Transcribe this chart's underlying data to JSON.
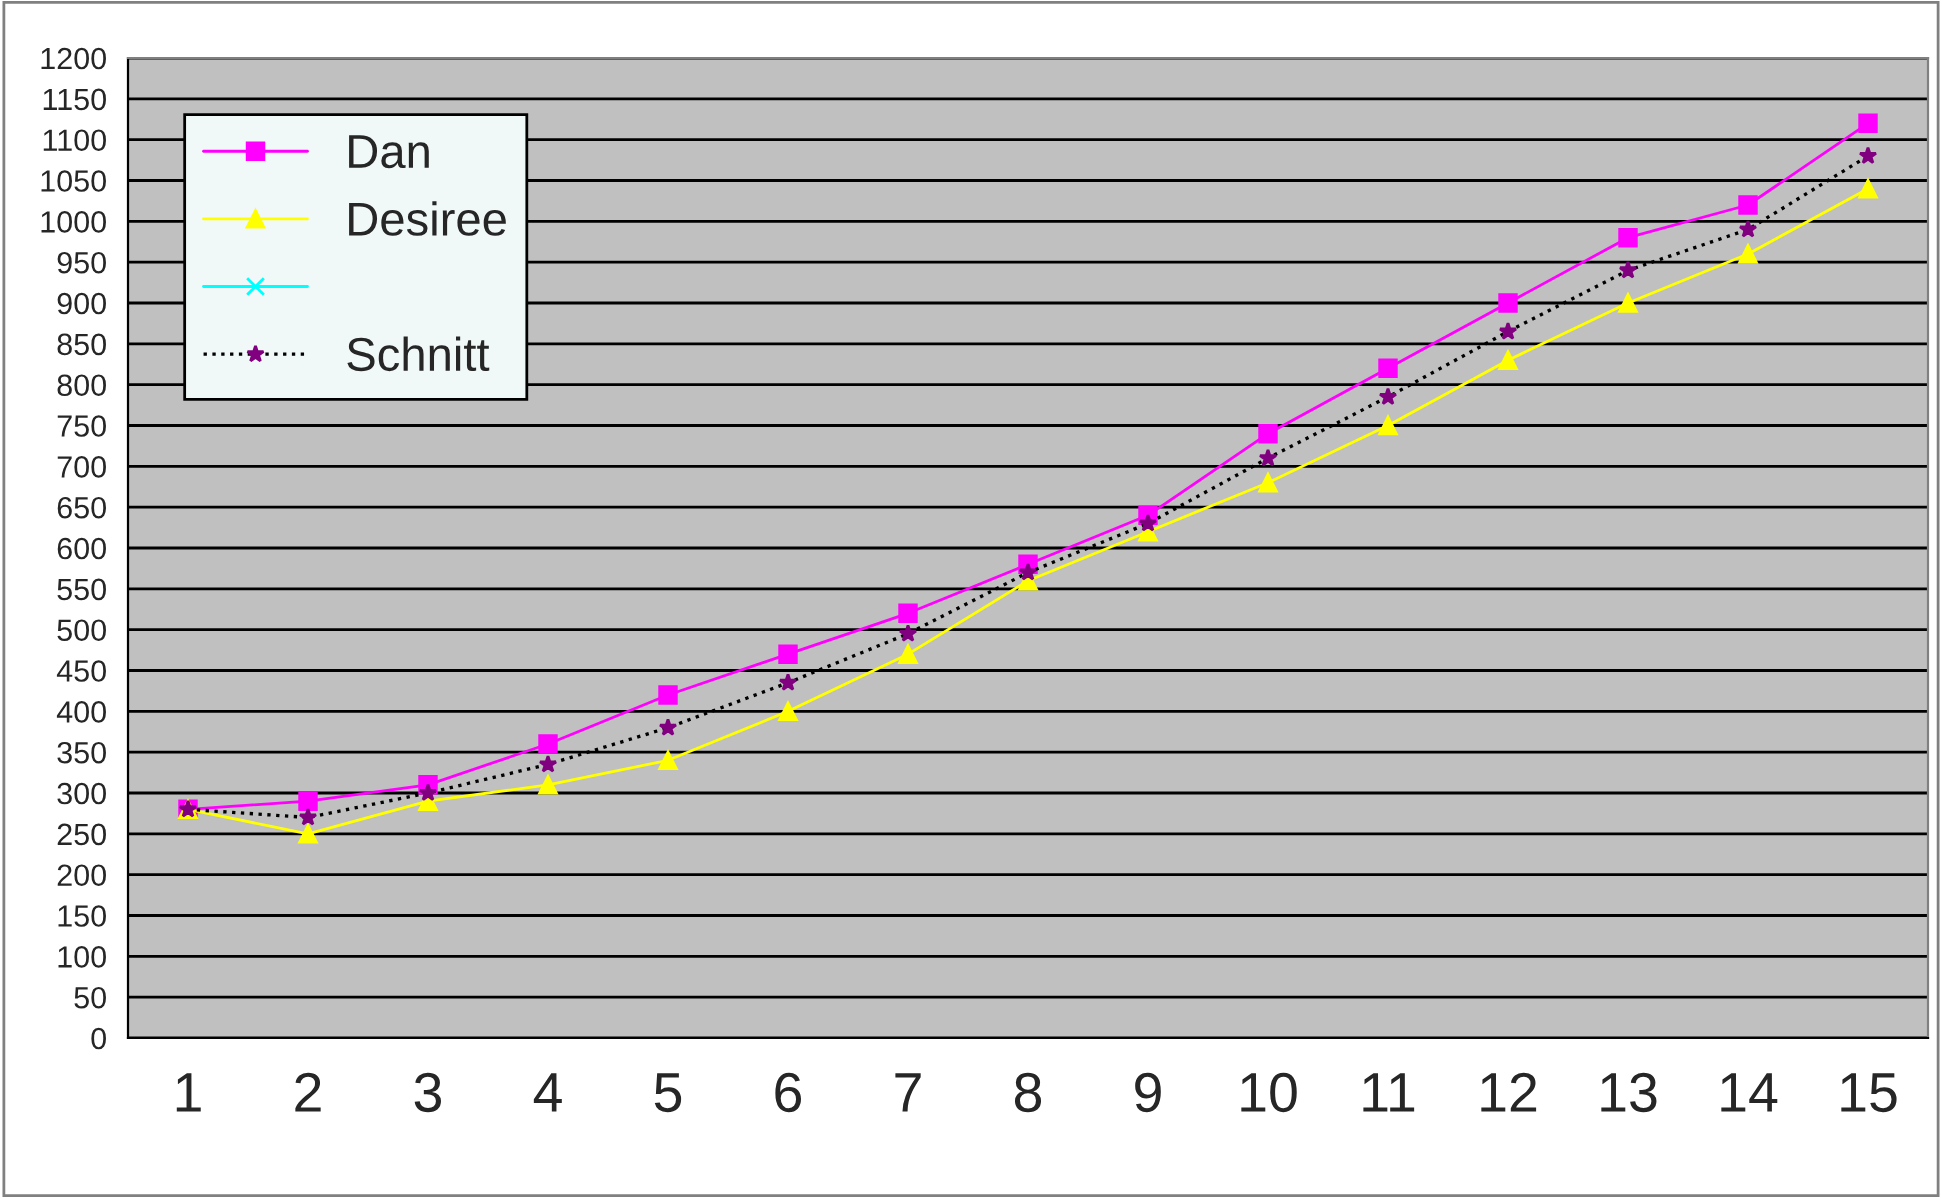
{
  "chart_data": {
    "type": "line",
    "categories": [
      "1",
      "2",
      "3",
      "4",
      "5",
      "6",
      "7",
      "8",
      "9",
      "10",
      "11",
      "12",
      "13",
      "14",
      "15"
    ],
    "series": [
      {
        "name": "Dan",
        "color": "#ff00ff",
        "marker": "square",
        "line_style": "solid",
        "values": [
          280,
          290,
          310,
          360,
          420,
          470,
          520,
          580,
          640,
          740,
          820,
          900,
          980,
          1020,
          1120
        ]
      },
      {
        "name": "Desiree",
        "color": "#ffff00",
        "marker": "triangle",
        "line_style": "solid",
        "values": [
          280,
          250,
          290,
          310,
          340,
          400,
          470,
          560,
          620,
          680,
          750,
          830,
          900,
          960,
          1040
        ]
      },
      {
        "color": "#00ffff",
        "marker": "cross",
        "line_style": "solid",
        "values": [
          null,
          null,
          null,
          null,
          null,
          null,
          null,
          null,
          null,
          null,
          null,
          null,
          null,
          null,
          null
        ]
      },
      {
        "name": "Schnitt",
        "color": "#000000",
        "marker": "star",
        "line_style": "dotted",
        "values": [
          280,
          270,
          300,
          335,
          380,
          435,
          495,
          570,
          630,
          710,
          785,
          865,
          940,
          990,
          1080
        ]
      }
    ],
    "ylim": [
      0,
      1200
    ],
    "yticks": [
      0,
      50,
      100,
      150,
      200,
      250,
      300,
      350,
      400,
      450,
      500,
      550,
      600,
      650,
      700,
      750,
      800,
      850,
      900,
      950,
      1000,
      1050,
      1100,
      1150,
      1200
    ],
    "grid": "y",
    "legend": "top left"
  }
}
